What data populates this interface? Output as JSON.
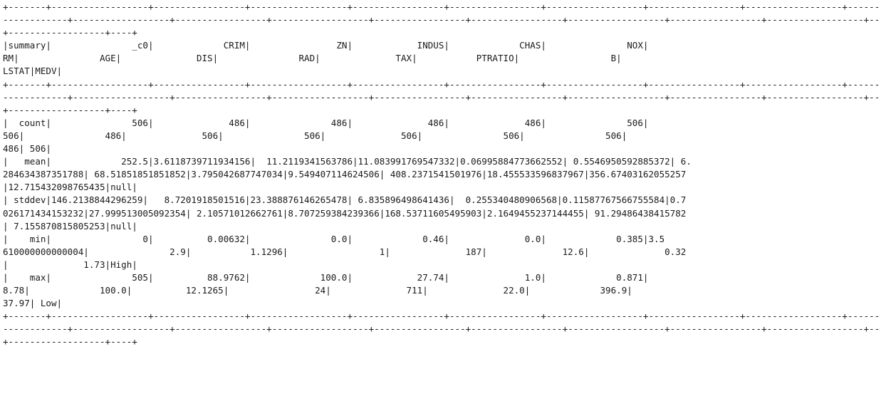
{
  "console": {
    "lines": [
      "+-------+------------------+-----------------+------------------+-----------------+-----------------+------------------+-----------------+------------------+------------------+---",
      "------------+------------------+-----------------+------------------+-----------------+-----------------+------------------+-----------------+------------------+------------------+----",
      "+------------------+----+",
      "|summary|               _c0|             CRIM|                ZN|            INDUS|             CHAS|               NOX|",
      "RM|               AGE|              DIS|               RAD|              TAX|           PTRATIO|                 B|",
      "LSTAT|MEDV|",
      "+-------+------------------+-----------------+------------------+-----------------+-----------------+------------------+-----------------+------------------+------------------+---",
      "------------+------------------+-----------------+------------------+-----------------+-----------------+------------------+-----------------+------------------+------------------+----",
      "+------------------+----+",
      "|  count|               506|              486|               486|              486|              486|               506|",
      "506|               486|              506|               506|              506|               506|               506|",
      "486| 506|",
      "|   mean|             252.5|3.6118739711934156|  11.2119341563786|11.083991769547332|0.06995884773662552| 0.5546950592885372| 6.",
      "284634387351788| 68.51851851851852|3.795042687747034|9.549407114624506| 408.2371541501976|18.455533596837967|356.67403162055257",
      "|12.715432098765435|null|",
      "| stddev|146.2138844296259|   8.7201918501516|23.388876146265478| 6.835896498641436|  0.255340480906568|0.11587767566755584|0.7",
      "026171434153232|27.999513005092354| 2.10571012662761|8.707259384239366|168.53711605495903|2.1649455237144455| 91.29486438415782",
      "| 7.155870815805253|null|",
      "|    min|                 0|          0.00632|               0.0|             0.46|              0.0|             0.385|3.5",
      "610000000000004|               2.9|           1.1296|                 1|              187|              12.6|              0.32",
      "|              1.73|High|",
      "|    max|               505|          88.9762|             100.0|            27.74|              1.0|             0.871|",
      "8.78|             100.0|          12.1265|                24|              711|              22.0|             396.9|",
      "37.97| Low|",
      "+-------+------------------+-----------------+------------------+-----------------+-----------------+------------------+-----------------+------------------+------------------+---",
      "------------+------------------+-----------------+------------------+-----------------+-----------------+------------------+-----------------+------------------+------------------+----",
      "+------------------+----+"
    ]
  }
}
